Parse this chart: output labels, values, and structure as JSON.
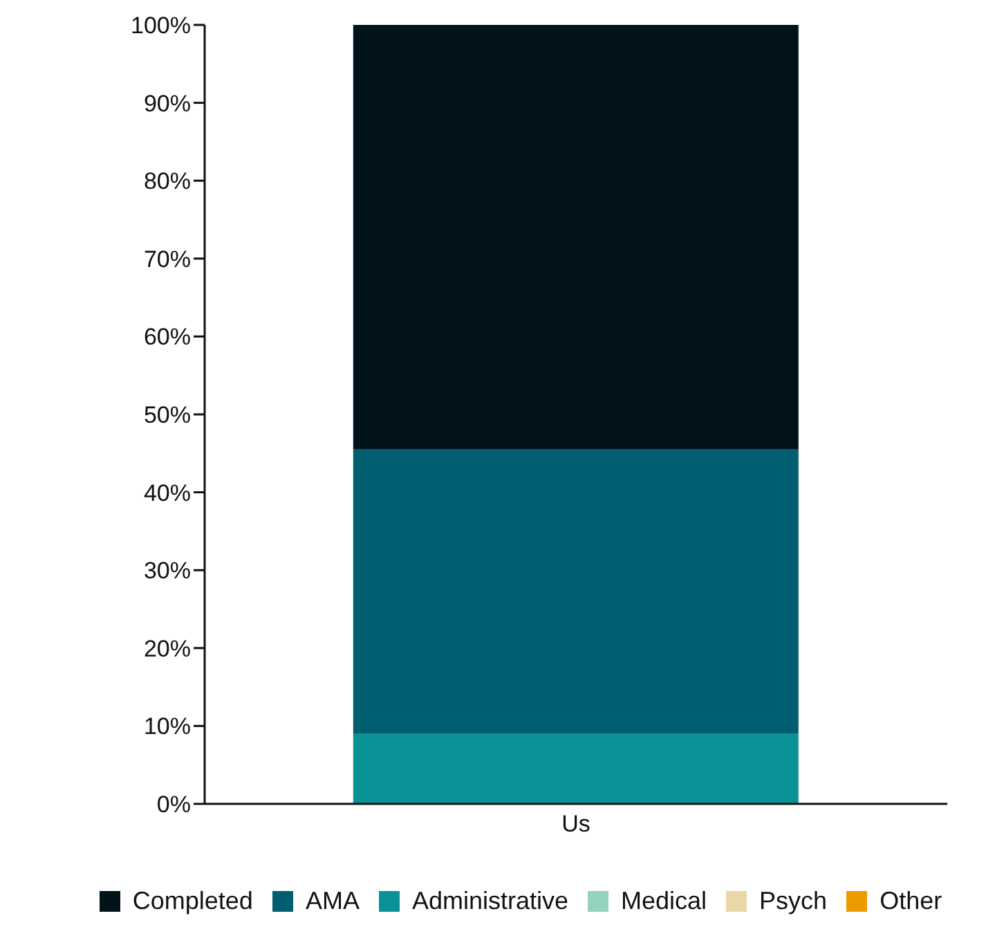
{
  "chart_data": {
    "type": "bar",
    "stacked": true,
    "categories": [
      "Us"
    ],
    "series": [
      {
        "name": "Other",
        "color": "#ee9b00",
        "values": [
          0
        ]
      },
      {
        "name": "Psych",
        "color": "#e9d8a6",
        "values": [
          0
        ]
      },
      {
        "name": "Medical",
        "color": "#94d2bd",
        "values": [
          0
        ]
      },
      {
        "name": "Administrative",
        "color": "#0a9396",
        "values": [
          9
        ]
      },
      {
        "name": "AMA",
        "color": "#005e70",
        "values": [
          36.5
        ]
      },
      {
        "name": "Completed",
        "color": "#021419",
        "values": [
          54.5
        ]
      }
    ],
    "ylim": [
      0,
      100
    ],
    "yticks": [
      {
        "value": 0,
        "label": "0%"
      },
      {
        "value": 10,
        "label": "10%"
      },
      {
        "value": 20,
        "label": "20%"
      },
      {
        "value": 30,
        "label": "30%"
      },
      {
        "value": 40,
        "label": "40%"
      },
      {
        "value": 50,
        "label": "50%"
      },
      {
        "value": 60,
        "label": "60%"
      },
      {
        "value": 70,
        "label": "70%"
      },
      {
        "value": 80,
        "label": "80%"
      },
      {
        "value": 90,
        "label": "90%"
      },
      {
        "value": 100,
        "label": "100%"
      }
    ],
    "grid": false,
    "legend": "bottom"
  }
}
